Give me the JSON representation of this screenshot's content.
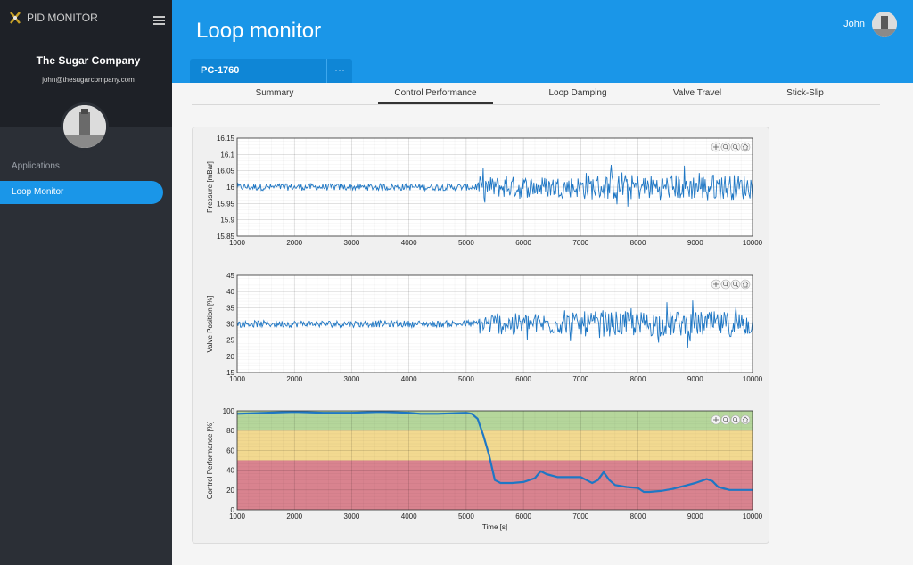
{
  "app": {
    "name": "PID MONITOR"
  },
  "sidebar": {
    "company": "The Sugar Company",
    "email": "john@thesugarcompany.com",
    "section_label": "Applications",
    "items": [
      {
        "label": "Loop Monitor",
        "active": true
      }
    ]
  },
  "header": {
    "title": "Loop monitor",
    "user_name": "John",
    "loop_tag": "PC-1760",
    "more_label": "···"
  },
  "tabs": [
    {
      "label": "Summary",
      "active": false
    },
    {
      "label": "Control Performance",
      "active": true
    },
    {
      "label": "Loop Damping",
      "active": false
    },
    {
      "label": "Valve Travel",
      "active": false
    },
    {
      "label": "Stick-Slip",
      "active": false
    }
  ],
  "colors": {
    "accent": "#1a96e8",
    "series": "#1f77c4",
    "zone_good": "#b5d69b",
    "zone_ok": "#f2d990",
    "zone_bad": "#d9838f"
  },
  "chart_data": [
    {
      "type": "line",
      "ylabel": "Pressure [mBar]",
      "xlim": [
        1000,
        10000
      ],
      "ylim": [
        15.85,
        16.15
      ],
      "xticks": [
        1000,
        2000,
        3000,
        4000,
        5000,
        6000,
        7000,
        8000,
        9000,
        10000
      ],
      "yticks": [
        "15.85",
        "15.9",
        "15.95",
        "16",
        "16.05",
        "16.1",
        "16.15"
      ],
      "series": [
        {
          "description": "noise around 16.0; amplitude ~0.01 until 5000, then ~0.04 with peaks ~0.07 after 7000"
        }
      ]
    },
    {
      "type": "line",
      "ylabel": "Valve Position [%]",
      "xlim": [
        1000,
        10000
      ],
      "ylim": [
        15,
        45
      ],
      "xticks": [
        1000,
        2000,
        3000,
        4000,
        5000,
        6000,
        7000,
        8000,
        9000,
        10000
      ],
      "yticks": [
        "15",
        "20",
        "25",
        "30",
        "35",
        "40",
        "45"
      ],
      "series": [
        {
          "description": "noise around 30; amplitude ~3 until 5000, ~6 after, peaks to ~42 and ~17"
        }
      ]
    },
    {
      "type": "line",
      "ylabel": "Control Performance [%]",
      "xlabel": "Time [s]",
      "xlim": [
        1000,
        10000
      ],
      "ylim": [
        0,
        100
      ],
      "xticks": [
        1000,
        2000,
        3000,
        4000,
        5000,
        6000,
        7000,
        8000,
        9000,
        10000
      ],
      "yticks": [
        "0",
        "20",
        "40",
        "60",
        "80",
        "100"
      ],
      "zones": [
        {
          "from": 80,
          "to": 100
        },
        {
          "from": 50,
          "to": 80
        },
        {
          "from": 0,
          "to": 50
        }
      ],
      "series": [
        {
          "x": [
            1000,
            1500,
            2000,
            2500,
            3000,
            3500,
            4000,
            4200,
            4500,
            5000,
            5100,
            5200,
            5300,
            5400,
            5500,
            5600,
            5800,
            6000,
            6200,
            6300,
            6400,
            6600,
            6800,
            7000,
            7100,
            7200,
            7300,
            7400,
            7500,
            7600,
            7800,
            8000,
            8100,
            8200,
            8400,
            8600,
            8800,
            9000,
            9200,
            9300,
            9400,
            9600,
            9800,
            10000
          ],
          "y": [
            97,
            98,
            99,
            98,
            98,
            99,
            98,
            97,
            97,
            98,
            97,
            92,
            75,
            55,
            30,
            27,
            27,
            28,
            32,
            39,
            36,
            33,
            33,
            33,
            30,
            27,
            30,
            38,
            30,
            25,
            23,
            22,
            18,
            18,
            19,
            21,
            24,
            27,
            31,
            29,
            23,
            20,
            20,
            20
          ]
        }
      ]
    }
  ]
}
